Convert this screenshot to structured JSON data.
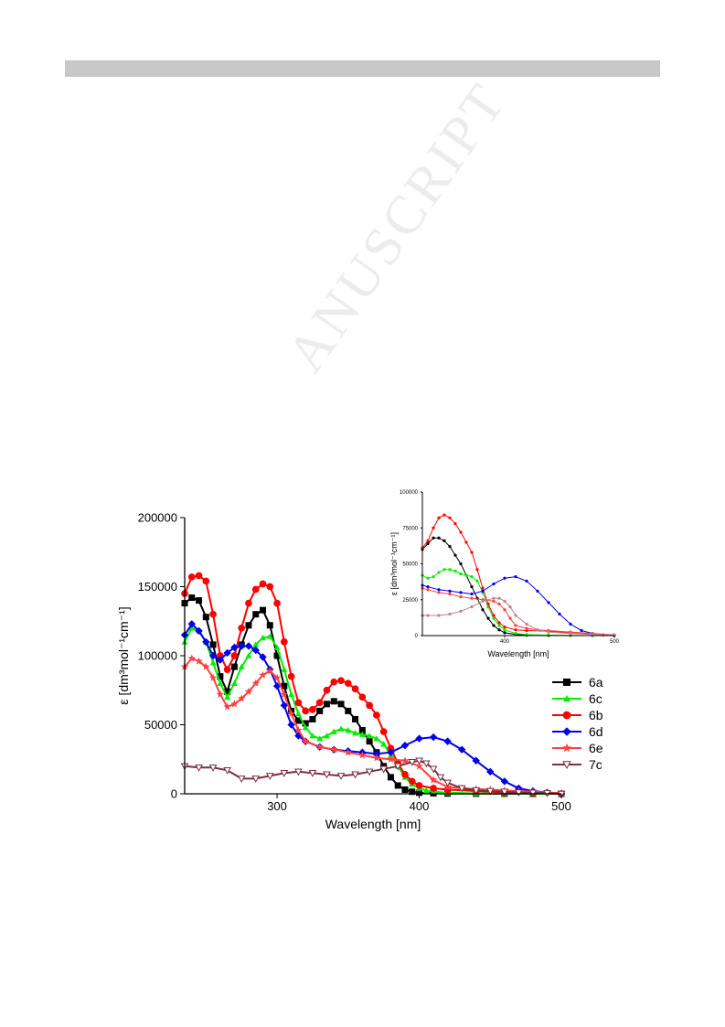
{
  "watermark": "ANUSCRIPT",
  "chart_data": [
    {
      "type": "line",
      "xlabel": "Wavelength [nm]",
      "ylabel": "ε [dm³mol⁻¹cm⁻¹]",
      "xlim": [
        235,
        500
      ],
      "ylim": [
        0,
        200000
      ],
      "x_ticks": [
        300,
        400,
        500
      ],
      "y_ticks": [
        0,
        50000,
        100000,
        150000,
        200000
      ],
      "x_tick_labels": [
        "300",
        "400",
        "500"
      ],
      "y_tick_labels": [
        "0",
        "50000",
        "100000",
        "150000",
        "200000"
      ],
      "legend_position": "right",
      "series": [
        {
          "name": "6a",
          "color": "#000000",
          "marker": "square",
          "x": [
            235,
            240,
            245,
            250,
            255,
            260,
            265,
            270,
            275,
            280,
            285,
            290,
            295,
            300,
            305,
            310,
            315,
            320,
            325,
            330,
            335,
            340,
            345,
            350,
            355,
            360,
            365,
            370,
            375,
            380,
            385,
            390,
            395,
            400,
            410,
            420,
            440,
            460,
            480,
            500
          ],
          "y": [
            138000,
            142000,
            140000,
            128000,
            108000,
            85000,
            74000,
            92000,
            108000,
            122000,
            130000,
            133000,
            122000,
            100000,
            78000,
            60000,
            53000,
            51000,
            54000,
            60000,
            65000,
            67000,
            65000,
            60000,
            54000,
            46000,
            38000,
            30000,
            20000,
            12000,
            6000,
            3000,
            1500,
            800,
            400,
            200,
            100,
            50,
            0,
            0
          ]
        },
        {
          "name": "6c",
          "color": "#00ee00",
          "marker": "triangle-up",
          "x": [
            235,
            240,
            245,
            250,
            255,
            260,
            265,
            270,
            275,
            280,
            285,
            290,
            295,
            300,
            305,
            310,
            315,
            320,
            325,
            330,
            335,
            340,
            345,
            350,
            355,
            360,
            365,
            370,
            375,
            380,
            385,
            390,
            395,
            400,
            405,
            410,
            420,
            440,
            460,
            480,
            500
          ],
          "y": [
            110000,
            120000,
            118000,
            110000,
            95000,
            80000,
            70000,
            80000,
            92000,
            100000,
            108000,
            113000,
            114000,
            106000,
            90000,
            72000,
            58000,
            48000,
            42000,
            40000,
            42000,
            45000,
            47000,
            46000,
            44000,
            43000,
            42000,
            40000,
            36000,
            28000,
            20000,
            12000,
            7000,
            4000,
            2500,
            1500,
            800,
            300,
            100,
            0,
            0
          ]
        },
        {
          "name": "6b",
          "color": "#ff0000",
          "marker": "circle",
          "x": [
            235,
            240,
            245,
            250,
            255,
            260,
            265,
            270,
            275,
            280,
            285,
            290,
            295,
            300,
            305,
            310,
            315,
            320,
            325,
            330,
            335,
            340,
            345,
            350,
            355,
            360,
            365,
            370,
            375,
            380,
            385,
            390,
            395,
            400,
            410,
            420,
            440,
            460,
            480,
            500
          ],
          "y": [
            145000,
            157000,
            158000,
            154000,
            130000,
            100000,
            90000,
            100000,
            120000,
            138000,
            148000,
            152000,
            150000,
            138000,
            110000,
            85000,
            66000,
            60000,
            61000,
            66000,
            75000,
            81000,
            82000,
            80000,
            76000,
            70000,
            64000,
            57000,
            45000,
            33000,
            22000,
            14000,
            9000,
            6000,
            4000,
            3000,
            2000,
            1000,
            500,
            0
          ]
        },
        {
          "name": "6d",
          "color": "#0000ee",
          "marker": "diamond",
          "x": [
            235,
            240,
            245,
            250,
            255,
            260,
            265,
            270,
            275,
            280,
            285,
            290,
            295,
            300,
            305,
            310,
            315,
            320,
            330,
            340,
            350,
            360,
            370,
            380,
            390,
            400,
            410,
            420,
            430,
            440,
            450,
            460,
            470,
            480,
            490,
            500
          ],
          "y": [
            115000,
            123000,
            118000,
            110000,
            100000,
            97000,
            102000,
            106000,
            107000,
            107000,
            104000,
            99000,
            90000,
            78000,
            64000,
            50000,
            42000,
            38000,
            34000,
            32000,
            31000,
            30000,
            29000,
            30000,
            35000,
            40000,
            41000,
            38000,
            32000,
            24000,
            16000,
            9000,
            4000,
            2000,
            1000,
            0
          ]
        },
        {
          "name": "6e",
          "color": "#ff4040",
          "marker": "star",
          "x": [
            235,
            240,
            245,
            250,
            255,
            260,
            265,
            270,
            275,
            280,
            285,
            290,
            295,
            300,
            305,
            310,
            315,
            320,
            330,
            340,
            350,
            360,
            370,
            380,
            390,
            400,
            410,
            420,
            430,
            440,
            450,
            460,
            470,
            480,
            490,
            500
          ],
          "y": [
            92000,
            98000,
            96000,
            92000,
            84000,
            72000,
            63000,
            65000,
            69000,
            74000,
            80000,
            86000,
            89000,
            84000,
            72000,
            58000,
            46000,
            38000,
            34000,
            32000,
            30000,
            28000,
            26000,
            25000,
            24000,
            20000,
            10000,
            5000,
            4000,
            3500,
            3000,
            2500,
            2000,
            1500,
            1000,
            500
          ]
        },
        {
          "name": "7c",
          "color": "#7a3040",
          "marker": "triangle-down",
          "x": [
            235,
            245,
            255,
            265,
            275,
            285,
            295,
            305,
            315,
            325,
            335,
            345,
            355,
            365,
            375,
            385,
            395,
            400,
            405,
            410,
            415,
            420,
            430,
            440,
            450,
            460,
            470,
            480,
            490,
            500
          ],
          "y": [
            20000,
            19000,
            19000,
            17000,
            11000,
            11000,
            13000,
            15000,
            16000,
            15000,
            14000,
            13000,
            14000,
            16000,
            18000,
            20000,
            23000,
            24000,
            22000,
            18000,
            12000,
            8000,
            4000,
            2500,
            2000,
            1500,
            1000,
            800,
            500,
            0
          ]
        }
      ]
    },
    {
      "type": "line",
      "xlabel": "Wavelength [nm]",
      "ylabel": "ε [dm³mol⁻¹cm⁻¹]",
      "xlim": [
        325,
        500
      ],
      "ylim": [
        0,
        100000
      ],
      "x_ticks": [
        400,
        500
      ],
      "y_ticks": [
        0,
        25000,
        50000,
        75000,
        100000
      ],
      "x_tick_labels": [
        "400",
        "500"
      ],
      "y_tick_labels": [
        "0",
        "25000",
        "50000",
        "75000",
        "100000"
      ],
      "series": [
        {
          "name": "6a",
          "color": "#000000",
          "marker": "dot",
          "x": [
            325,
            330,
            335,
            340,
            345,
            350,
            355,
            360,
            365,
            370,
            375,
            380,
            385,
            390,
            395,
            400,
            410,
            420,
            440,
            460,
            480,
            500
          ],
          "y": [
            60000,
            64000,
            68000,
            68000,
            66000,
            62000,
            56000,
            50000,
            42000,
            34000,
            26000,
            18000,
            12000,
            7000,
            4000,
            2000,
            800,
            300,
            100,
            0,
            0,
            0
          ]
        },
        {
          "name": "6c",
          "color": "#00ee00",
          "marker": "dot",
          "x": [
            325,
            330,
            335,
            340,
            345,
            350,
            355,
            360,
            365,
            370,
            375,
            380,
            385,
            390,
            395,
            400,
            410,
            420,
            440,
            460,
            480,
            500
          ],
          "y": [
            42000,
            40000,
            41000,
            44000,
            46000,
            46000,
            45000,
            43000,
            42000,
            41000,
            38000,
            30000,
            20000,
            12000,
            7000,
            4000,
            1500,
            700,
            300,
            100,
            0,
            0
          ]
        },
        {
          "name": "6b",
          "color": "#ff0000",
          "marker": "dot",
          "x": [
            325,
            330,
            335,
            340,
            345,
            350,
            355,
            360,
            365,
            370,
            375,
            380,
            385,
            390,
            395,
            400,
            410,
            420,
            440,
            460,
            480,
            500
          ],
          "y": [
            61000,
            66000,
            75000,
            82000,
            84000,
            82000,
            78000,
            72000,
            65000,
            58000,
            46000,
            33000,
            22000,
            14000,
            9000,
            6000,
            4000,
            3500,
            3000,
            2000,
            1000,
            500
          ]
        },
        {
          "name": "6d",
          "color": "#0000ee",
          "marker": "dot",
          "x": [
            325,
            330,
            340,
            350,
            360,
            370,
            380,
            390,
            400,
            410,
            420,
            430,
            440,
            450,
            460,
            470,
            480,
            490,
            500
          ],
          "y": [
            35000,
            34000,
            32000,
            31000,
            30000,
            29000,
            31000,
            36000,
            40000,
            41000,
            38000,
            31000,
            23000,
            15000,
            8000,
            3500,
            1500,
            500,
            0
          ]
        },
        {
          "name": "6e",
          "color": "#ff4040",
          "marker": "dot",
          "x": [
            325,
            330,
            340,
            350,
            360,
            370,
            380,
            390,
            395,
            400,
            405,
            410,
            420,
            430,
            440,
            460,
            480,
            500
          ],
          "y": [
            33000,
            32000,
            30000,
            29000,
            27000,
            26000,
            25000,
            24000,
            22000,
            18000,
            12000,
            7000,
            5000,
            4000,
            3500,
            2500,
            1500,
            500
          ]
        },
        {
          "name": "7c",
          "color": "#c08090",
          "marker": "dot",
          "x": [
            325,
            330,
            340,
            350,
            360,
            370,
            380,
            390,
            395,
            400,
            405,
            410,
            420,
            430,
            440,
            460,
            480,
            500
          ],
          "y": [
            14000,
            14000,
            14000,
            15000,
            17000,
            20000,
            24000,
            26000,
            26000,
            24000,
            20000,
            14000,
            8000,
            4000,
            2500,
            1500,
            800,
            300
          ]
        }
      ]
    }
  ]
}
